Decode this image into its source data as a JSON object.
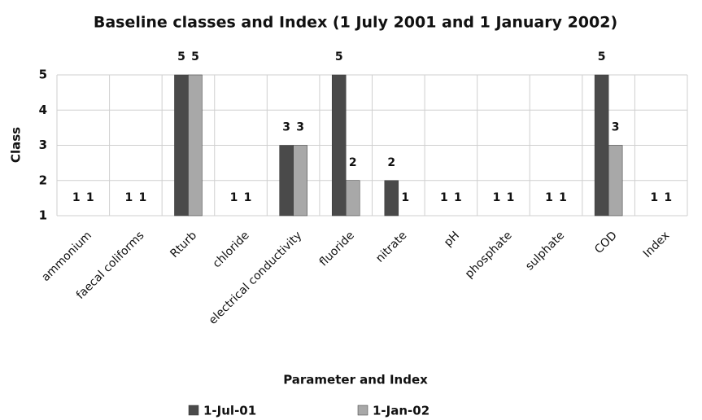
{
  "chart_data": {
    "type": "bar",
    "title": "Baseline classes and Index (1 July 2001 and 1 January 2002)",
    "x_label": "Parameter and Index",
    "y_label": "Class",
    "categories": [
      "ammonium",
      "faecal coliforms",
      "Rturb",
      "chloride",
      "electrical conductivity",
      "fluoride",
      "nitrate",
      "pH",
      "phosphate",
      "sulphate",
      "COD",
      "Index"
    ],
    "series": [
      {
        "name": "1-Jul-01",
        "color": "#4a4a4a",
        "values": [
          1,
          1,
          5,
          1,
          3,
          5,
          2,
          1,
          1,
          1,
          5,
          1
        ]
      },
      {
        "name": "1-Jan-02",
        "color": "#a8a8a8",
        "values": [
          1,
          1,
          5,
          1,
          3,
          2,
          1,
          1,
          1,
          1,
          3,
          1
        ]
      }
    ],
    "ylim": [
      1,
      5
    ],
    "yticks": [
      1,
      2,
      3,
      4,
      5
    ],
    "grid": true,
    "legend": "bottom"
  }
}
